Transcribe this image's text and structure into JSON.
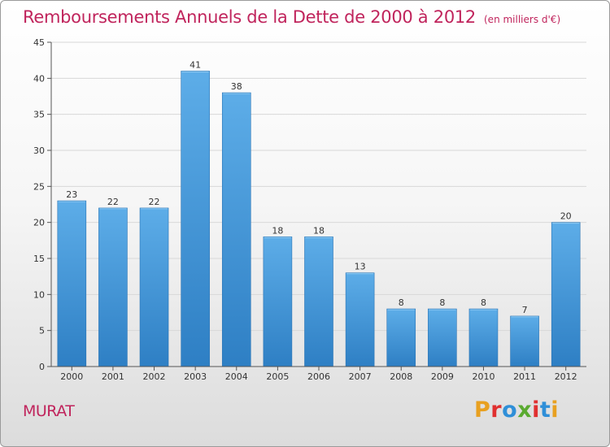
{
  "header": {
    "title": "Remboursements Annuels de la Dette de 2000 à 2012",
    "unit": "(en milliers d'€)"
  },
  "footer": {
    "place": "MURAT",
    "logo_text": "Proxiti",
    "logo_colors": [
      "#e8a020",
      "#e03030",
      "#2f8fd8",
      "#5aaa30",
      "#e03030",
      "#2f8fd8",
      "#e8a020"
    ]
  },
  "colors": {
    "bar_light": "#5dade8",
    "bar_dark": "#2e7fc4",
    "axis": "#555555",
    "grid": "#d8d8d8",
    "title": "#c0245c"
  },
  "chart_data": {
    "type": "bar",
    "categories": [
      "2000",
      "2001",
      "2002",
      "2003",
      "2004",
      "2005",
      "2006",
      "2007",
      "2008",
      "2009",
      "2010",
      "2011",
      "2012"
    ],
    "values": [
      23,
      22,
      22,
      41,
      38,
      18,
      18,
      13,
      8,
      8,
      8,
      7,
      20
    ],
    "ylim": [
      0,
      45
    ],
    "yticks": [
      0,
      5,
      10,
      15,
      20,
      25,
      30,
      35,
      40,
      45
    ],
    "grid": true,
    "data_labels": true
  }
}
